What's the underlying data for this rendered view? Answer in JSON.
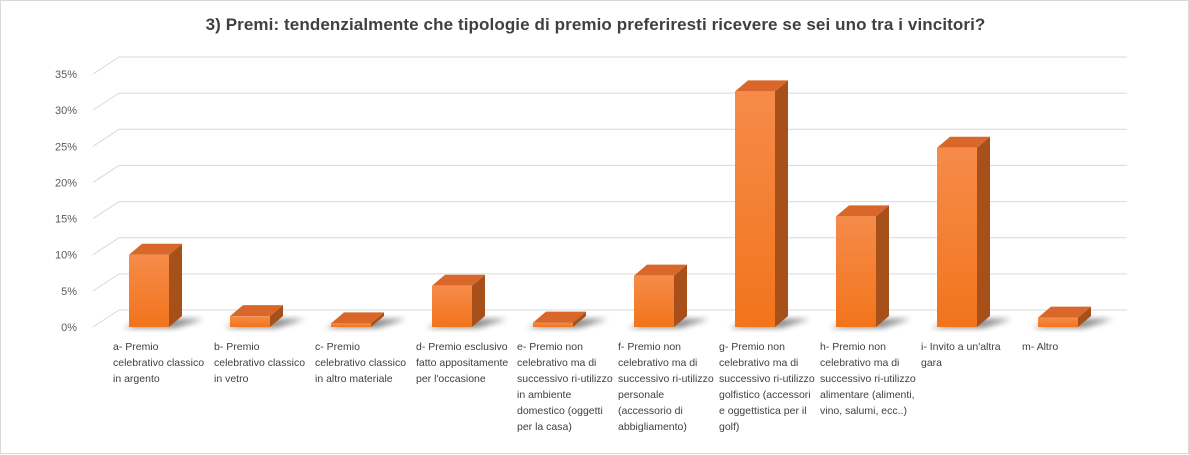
{
  "chart_data": {
    "type": "bar",
    "title": "3) Premi: tendenzialmente che tipologie di premio preferiresti ricevere se sei uno tra i vincitori?",
    "categories": [
      "a- Premio celebrativo classico in argento",
      "b- Premio celebrativo classico in vetro",
      "c- Premio celebrativo classico in altro materiale",
      "d- Premio esclusivo fatto appositamente per l'occasione",
      "e- Premio non celebrativo ma di successivo ri-utilizzo in ambiente domestico (oggetti per la casa)",
      "f- Premio non celebrativo ma di successivo ri-utilizzo personale (accessorio di abbigliamento)",
      "g- Premio non celebrativo ma di successivo ri-utilizzo golfistico (accessori e oggettistica per il golf)",
      "h- Premio non celebrativo ma di successivo ri-utilizzo alimentare (alimenti, vino, salumi, ecc..)",
      "i- Invito a un'altra gara",
      "m- Altro"
    ],
    "values": [
      10,
      1.5,
      0.5,
      5.7,
      0.6,
      7.1,
      32.6,
      15.3,
      24.8,
      1.3
    ],
    "ylim": [
      0,
      35
    ],
    "yticks": [
      "0%",
      "5%",
      "10%",
      "15%",
      "20%",
      "25%",
      "30%",
      "35%"
    ],
    "xlabel": "",
    "ylabel": "",
    "grid": true,
    "bar_color": "#F47B20"
  }
}
